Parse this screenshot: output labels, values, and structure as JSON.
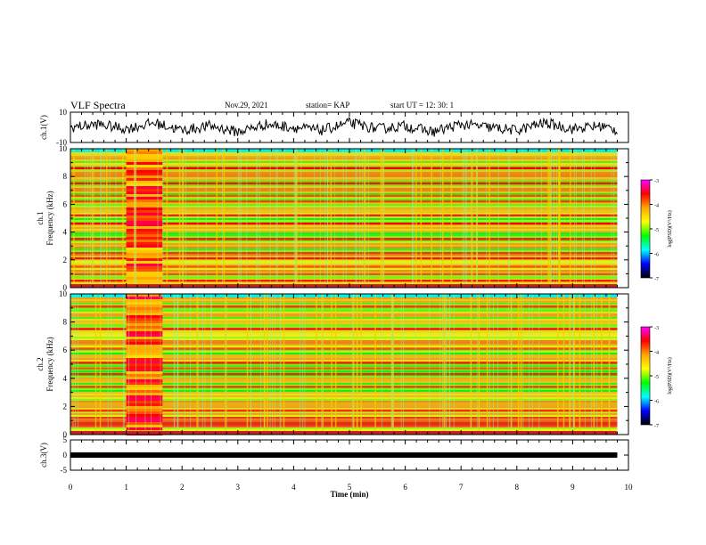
{
  "header": {
    "title": "VLF Spectra",
    "date": "Nov.29, 2021",
    "station": "station= KAP",
    "start": "start  UT =   12: 30: 1"
  },
  "colorbar": {
    "label": "log(PSD)(V²/Hz)",
    "ticks": [
      "-3",
      "-4",
      "-5",
      "-6",
      "-7"
    ],
    "stops": [
      "#ff00ff",
      "#ff0000",
      "#ffa500",
      "#ffff00",
      "#00ff00",
      "#00ffff",
      "#0000ff",
      "#000000"
    ]
  },
  "chart_data": [
    {
      "type": "line",
      "panel": "ch1-waveform",
      "ylabel": "ch.1(V)",
      "ylim": [
        -10,
        10
      ],
      "ytick_labels": [
        "10",
        "-10"
      ],
      "xlim": [
        0,
        10
      ],
      "series": [
        {
          "color": "#000000",
          "x": [
            0.0,
            0.5,
            1.0,
            1.5,
            2.0,
            2.5,
            3.0,
            3.5,
            4.0,
            4.5,
            5.0,
            5.5,
            6.0,
            6.5,
            7.0,
            7.5,
            8.0,
            8.5,
            9.0,
            9.5,
            9.8
          ],
          "values": [
            0,
            2,
            -1,
            3,
            -2,
            1,
            -3,
            2,
            0,
            -2,
            3,
            -1,
            1,
            -3,
            2,
            0,
            -2,
            3,
            -1,
            1,
            -2
          ]
        }
      ]
    },
    {
      "type": "heatmap",
      "panel": "ch1-spectrogram",
      "ylabel": "ch.1\nFrequency (kHz)",
      "ylim": [
        0,
        10
      ],
      "xlim": [
        0,
        10
      ],
      "ytick_labels": [
        "0",
        "2",
        "4",
        "6",
        "8",
        "10"
      ],
      "colorbar_range": [
        -7,
        -3
      ],
      "data_end_min": 9.8,
      "burst_minutes": [
        1.0,
        1.65
      ],
      "strong_lines_khz": [
        0.5,
        1.5,
        2.1,
        3.5,
        4.6,
        5.2,
        6.2,
        6.6,
        7.5,
        8.6
      ],
      "weak_bands_khz": [
        1.2,
        2.5,
        3.1,
        4.2,
        5.6,
        7.1,
        8.0,
        8.3,
        9.3,
        9.6
      ]
    },
    {
      "type": "heatmap",
      "panel": "ch2-spectrogram",
      "ylabel": "ch.2\nFrequency (kHz)",
      "ylim": [
        0,
        10
      ],
      "xlim": [
        0,
        10
      ],
      "ytick_labels": [
        "0",
        "2",
        "4",
        "6",
        "8",
        "10"
      ],
      "colorbar_range": [
        -7,
        -3
      ],
      "data_end_min": 9.8,
      "burst_minutes": [
        1.0,
        1.65
      ],
      "strong_lines_khz": [
        1.7,
        3.4,
        4.3,
        4.7,
        5.1,
        6.1,
        7.5,
        9.1
      ],
      "weak_bands_khz": [
        0.8,
        1.1,
        2.3,
        2.9,
        3.9,
        5.6,
        6.6,
        8.1,
        8.6,
        9.6
      ]
    },
    {
      "type": "line",
      "panel": "ch3-waveform",
      "ylabel": "ch.3(V)",
      "ylim": [
        -5,
        5
      ],
      "ytick_labels": [
        "5",
        "0",
        "-5"
      ],
      "xlim": [
        0,
        10
      ],
      "xlabel": "Time  (min)",
      "xtick_labels": [
        "0",
        "1",
        "2",
        "3",
        "4",
        "5",
        "6",
        "7",
        "8",
        "9",
        "10"
      ],
      "series": [
        {
          "color": "#000000",
          "x": [
            0,
            9.8
          ],
          "values": [
            0,
            0
          ]
        }
      ]
    }
  ]
}
